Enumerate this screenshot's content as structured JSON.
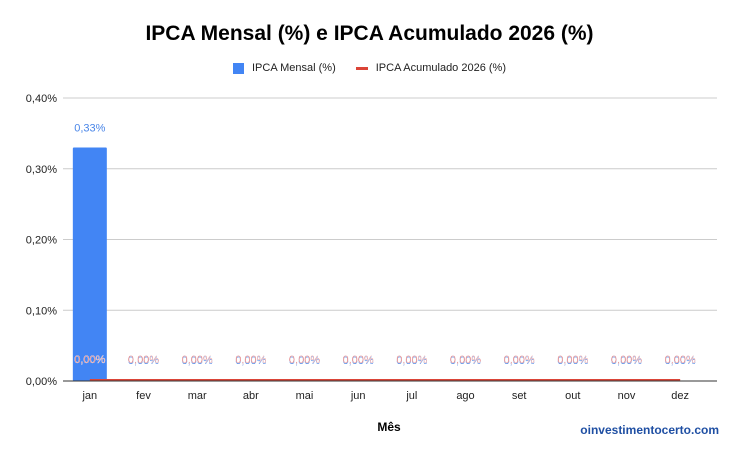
{
  "chart_data": {
    "type": "bar",
    "title": "IPCA Mensal (%) e IPCA Acumulado 2026 (%)",
    "xlabel": "Mês",
    "ylabel": "",
    "categories": [
      "jan",
      "fev",
      "mar",
      "abr",
      "mai",
      "jun",
      "jul",
      "ago",
      "set",
      "out",
      "nov",
      "dez"
    ],
    "series": [
      {
        "name": "IPCA Mensal (%)",
        "type": "bar",
        "color": "#4285f4",
        "values": [
          0.33,
          0,
          0,
          0,
          0,
          0,
          0,
          0,
          0,
          0,
          0,
          0
        ]
      },
      {
        "name": "IPCA Acumulado 2026 (%)",
        "type": "line",
        "color": "#db4437",
        "values": [
          0,
          0,
          0,
          0,
          0,
          0,
          0,
          0,
          0,
          0,
          0,
          0
        ]
      }
    ],
    "data_labels": {
      "mensal": [
        "0,33%",
        "0,00%",
        "0,00%",
        "0,00%",
        "0,00%",
        "0,00%",
        "0,00%",
        "0,00%",
        "0,00%",
        "0,00%",
        "0,00%",
        "0,00%"
      ],
      "acumulado": [
        "0,00%",
        "0,00%",
        "0,00%",
        "0,00%",
        "0,00%",
        "0,00%",
        "0,00%",
        "0,00%",
        "0,00%",
        "0,00%",
        "0,00%",
        "0,00%"
      ]
    },
    "yticks": [
      "0,00%",
      "0,10%",
      "0,20%",
      "0,30%",
      "0,40%"
    ],
    "ylim": [
      0,
      0.4
    ],
    "grid": true,
    "legend_position": "top"
  },
  "legend": {
    "mensal": "IPCA Mensal (%)",
    "acumulado": "IPCA Acumulado 2026 (%)"
  },
  "branding": "oinvestimentocerto.com"
}
